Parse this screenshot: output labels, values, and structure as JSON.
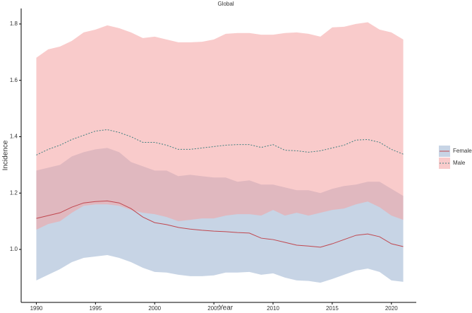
{
  "chart_data": {
    "type": "line",
    "title": "Global",
    "x_label": "Year",
    "y_label": "Incidence",
    "x": [
      1990,
      1991,
      1992,
      1993,
      1994,
      1995,
      1996,
      1997,
      1998,
      1999,
      2000,
      2001,
      2002,
      2003,
      2004,
      2005,
      2006,
      2007,
      2008,
      2009,
      2010,
      2011,
      2012,
      2013,
      2014,
      2015,
      2016,
      2017,
      2018,
      2019,
      2020,
      2021
    ],
    "xlim": [
      1988.72,
      2022.1
    ],
    "xticks": [
      1990,
      1995,
      2000,
      2005,
      2010,
      2015,
      2020
    ],
    "ylim": [
      0.812,
      1.855
    ],
    "yticks": [
      {
        "value": 1.0,
        "label": "1.0"
      },
      1.2,
      1.4,
      1.6,
      1.8
    ],
    "grid": false,
    "legend": "right",
    "series": [
      {
        "name": "Female",
        "color": "#c0474f",
        "dash": "solid",
        "ribbon_color": "#8fa9cc",
        "ribbon_opacity": 0.5,
        "values": [
          1.11,
          1.12,
          1.13,
          1.15,
          1.165,
          1.17,
          1.172,
          1.165,
          1.145,
          1.115,
          1.095,
          1.088,
          1.078,
          1.072,
          1.068,
          1.065,
          1.063,
          1.06,
          1.058,
          1.04,
          1.035,
          1.025,
          1.015,
          1.012,
          1.008,
          1.02,
          1.035,
          1.05,
          1.055,
          1.045,
          1.02,
          1.01
        ],
        "upper": [
          1.28,
          1.29,
          1.3,
          1.33,
          1.345,
          1.355,
          1.36,
          1.345,
          1.31,
          1.295,
          1.28,
          1.28,
          1.26,
          1.265,
          1.26,
          1.255,
          1.255,
          1.24,
          1.245,
          1.23,
          1.23,
          1.22,
          1.21,
          1.21,
          1.2,
          1.215,
          1.225,
          1.23,
          1.24,
          1.24,
          1.215,
          1.19
        ],
        "lower": [
          0.89,
          0.91,
          0.93,
          0.955,
          0.97,
          0.975,
          0.98,
          0.97,
          0.955,
          0.935,
          0.92,
          0.918,
          0.91,
          0.905,
          0.905,
          0.908,
          0.918,
          0.918,
          0.92,
          0.91,
          0.915,
          0.9,
          0.89,
          0.888,
          0.882,
          0.895,
          0.91,
          0.925,
          0.932,
          0.92,
          0.89,
          0.885
        ]
      },
      {
        "name": "Male",
        "color": "#3f7f7f",
        "dash": "dotted",
        "ribbon_color": "#f4a0a0",
        "ribbon_opacity": 0.55,
        "values": [
          1.335,
          1.355,
          1.37,
          1.39,
          1.405,
          1.42,
          1.425,
          1.415,
          1.4,
          1.38,
          1.38,
          1.37,
          1.355,
          1.355,
          1.36,
          1.365,
          1.37,
          1.372,
          1.372,
          1.362,
          1.372,
          1.352,
          1.35,
          1.345,
          1.35,
          1.36,
          1.37,
          1.388,
          1.39,
          1.38,
          1.355,
          1.338
        ],
        "upper": [
          1.68,
          1.71,
          1.72,
          1.74,
          1.77,
          1.78,
          1.795,
          1.785,
          1.77,
          1.75,
          1.755,
          1.745,
          1.735,
          1.735,
          1.737,
          1.745,
          1.765,
          1.768,
          1.768,
          1.762,
          1.762,
          1.768,
          1.77,
          1.765,
          1.755,
          1.788,
          1.79,
          1.8,
          1.806,
          1.78,
          1.77,
          1.745
        ],
        "lower": [
          1.07,
          1.09,
          1.1,
          1.13,
          1.155,
          1.16,
          1.16,
          1.155,
          1.14,
          1.13,
          1.125,
          1.115,
          1.1,
          1.105,
          1.11,
          1.11,
          1.12,
          1.125,
          1.125,
          1.12,
          1.14,
          1.12,
          1.13,
          1.12,
          1.13,
          1.14,
          1.145,
          1.16,
          1.17,
          1.15,
          1.12,
          1.105
        ]
      }
    ]
  }
}
